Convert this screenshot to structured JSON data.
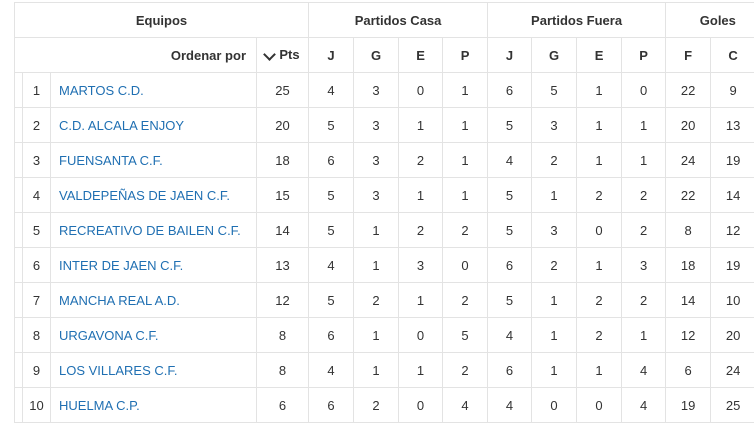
{
  "header": {
    "equipos": "Equipos",
    "casa": "Partidos Casa",
    "fuera": "Partidos Fuera",
    "goles": "Goles",
    "ordenar": "Ordenar por",
    "pts": "Pts",
    "j": "J",
    "g": "G",
    "e": "E",
    "p": "P",
    "f": "F",
    "c": "C"
  },
  "rows": [
    {
      "pos": "1",
      "team": "MARTOS C.D.",
      "pts": "25",
      "hj": "4",
      "hg": "3",
      "he": "0",
      "hp": "1",
      "aj": "6",
      "ag": "5",
      "ae": "1",
      "ap": "0",
      "f": "22",
      "c": "9"
    },
    {
      "pos": "2",
      "team": "C.D. ALCALA ENJOY",
      "pts": "20",
      "hj": "5",
      "hg": "3",
      "he": "1",
      "hp": "1",
      "aj": "5",
      "ag": "3",
      "ae": "1",
      "ap": "1",
      "f": "20",
      "c": "13"
    },
    {
      "pos": "3",
      "team": "FUENSANTA C.F.",
      "pts": "18",
      "hj": "6",
      "hg": "3",
      "he": "2",
      "hp": "1",
      "aj": "4",
      "ag": "2",
      "ae": "1",
      "ap": "1",
      "f": "24",
      "c": "19"
    },
    {
      "pos": "4",
      "team": "VALDEPEÑAS DE JAEN C.F.",
      "pts": "15",
      "hj": "5",
      "hg": "3",
      "he": "1",
      "hp": "1",
      "aj": "5",
      "ag": "1",
      "ae": "2",
      "ap": "2",
      "f": "22",
      "c": "14"
    },
    {
      "pos": "5",
      "team": "RECREATIVO DE BAILEN C.F.",
      "pts": "14",
      "hj": "5",
      "hg": "1",
      "he": "2",
      "hp": "2",
      "aj": "5",
      "ag": "3",
      "ae": "0",
      "ap": "2",
      "f": "8",
      "c": "12"
    },
    {
      "pos": "6",
      "team": "INTER DE JAEN C.F.",
      "pts": "13",
      "hj": "4",
      "hg": "1",
      "he": "3",
      "hp": "0",
      "aj": "6",
      "ag": "2",
      "ae": "1",
      "ap": "3",
      "f": "18",
      "c": "19"
    },
    {
      "pos": "7",
      "team": "MANCHA REAL A.D.",
      "pts": "12",
      "hj": "5",
      "hg": "2",
      "he": "1",
      "hp": "2",
      "aj": "5",
      "ag": "1",
      "ae": "2",
      "ap": "2",
      "f": "14",
      "c": "10"
    },
    {
      "pos": "8",
      "team": "URGAVONA C.F.",
      "pts": "8",
      "hj": "6",
      "hg": "1",
      "he": "0",
      "hp": "5",
      "aj": "4",
      "ag": "1",
      "ae": "2",
      "ap": "1",
      "f": "12",
      "c": "20"
    },
    {
      "pos": "9",
      "team": "LOS VILLARES C.F.",
      "pts": "8",
      "hj": "4",
      "hg": "1",
      "he": "1",
      "hp": "2",
      "aj": "6",
      "ag": "1",
      "ae": "1",
      "ap": "4",
      "f": "6",
      "c": "24"
    },
    {
      "pos": "10",
      "team": "HUELMA C.P.",
      "pts": "6",
      "hj": "6",
      "hg": "2",
      "he": "0",
      "hp": "4",
      "aj": "4",
      "ag": "0",
      "ae": "0",
      "ap": "4",
      "f": "19",
      "c": "25"
    }
  ],
  "colors": {
    "link": "#1f6fb2",
    "border": "#e3e3e3"
  },
  "icons": {
    "sort": "chevron-down-icon"
  }
}
